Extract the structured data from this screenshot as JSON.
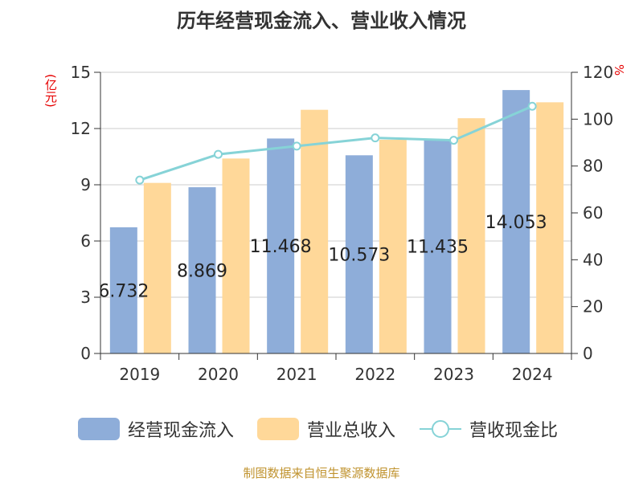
{
  "title": "历年经营现金流入、营业收入情况",
  "left_unit": "(亿元)",
  "right_unit": "%",
  "footer": "制图数据来自恒生聚源数据库",
  "colors": {
    "cash_inflow": "#8eadd9",
    "revenue": "#ffd899",
    "ratio": "#86d3d7"
  },
  "legend": {
    "cash_inflow": "经营现金流入",
    "revenue": "营业总收入",
    "ratio": "营收现金比"
  },
  "chart_data": {
    "type": "bar",
    "categories": [
      "2019",
      "2020",
      "2021",
      "2022",
      "2023",
      "2024"
    ],
    "series": [
      {
        "name": "经营现金流入",
        "type": "bar",
        "axis": "left",
        "values": [
          6.732,
          8.869,
          11.468,
          10.573,
          11.435,
          14.053
        ],
        "data_labels": [
          "6.732",
          "8.869",
          "11.468",
          "10.573",
          "11.435",
          "14.053"
        ]
      },
      {
        "name": "营业总收入",
        "type": "bar",
        "axis": "left",
        "values": [
          9.1,
          10.4,
          13.0,
          11.4,
          12.55,
          13.4
        ]
      },
      {
        "name": "营收现金比",
        "type": "line",
        "axis": "right",
        "values": [
          74,
          85,
          88.5,
          92,
          91,
          105.5
        ]
      }
    ],
    "y_left": {
      "ylim": [
        0,
        15
      ],
      "ticks": [
        "0",
        "3",
        "6",
        "9",
        "12",
        "15"
      ]
    },
    "y_right": {
      "ylim": [
        0,
        120
      ],
      "ticks": [
        "0",
        "20",
        "40",
        "60",
        "80",
        "100",
        "120"
      ]
    },
    "grid": true,
    "legend_position": "bottom"
  }
}
